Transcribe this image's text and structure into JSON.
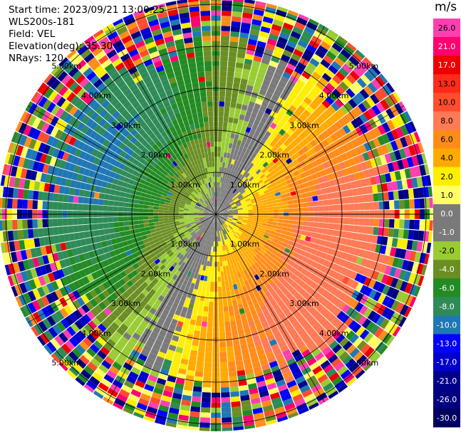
{
  "info": {
    "start_time": "Start time: 2023/09/21 13:00:25",
    "instrument": "WLS200s-181",
    "field": "Field: VEL",
    "elevation": "Elevation(deg): 35.30",
    "nrays": "NRays: 120"
  },
  "colorbar": {
    "unit": "m/s",
    "ticks": [
      "26.0",
      "21.0",
      "17.0",
      "13.0",
      "10.0",
      "8.0",
      "6.0",
      "4.0",
      "2.0",
      "1.0",
      "0.0",
      "-1.0",
      "-2.0",
      "-4.0",
      "-6.0",
      "-8.0",
      "-10.0",
      "-13.0",
      "-17.0",
      "-21.0",
      "-26.0",
      "-30.0"
    ],
    "colors": [
      "#ff3fb0",
      "#ff006e",
      "#ee0000",
      "#ff2a1a",
      "#ff4d2e",
      "#ff7a55",
      "#ff8c1a",
      "#ffaa00",
      "#ffee00",
      "#ffff66",
      "#7a7a7a",
      "#7a7a7a",
      "#99cc33",
      "#6b8e23",
      "#228b22",
      "#2e8b57",
      "#1f78b4",
      "#0000ff",
      "#0000cd",
      "#00008b",
      "#000080",
      "#000060"
    ]
  },
  "chart_data": {
    "type": "polar-ppi",
    "field": "VEL",
    "units": "m/s",
    "nrays": 120,
    "range_rings_km": [
      1.0,
      2.0,
      3.0,
      4.0,
      5.0
    ],
    "range_ring_labels": [
      "1.00km",
      "2.00km",
      "3.00km",
      "4.00km",
      "5.00km"
    ],
    "color_limits": [
      -30.0,
      26.0
    ],
    "pattern": "dipole: positive (orange/red) toward east and south-east, negative (green/blue) toward west and north-west, noisy speckle beyond ~3.8 km"
  }
}
